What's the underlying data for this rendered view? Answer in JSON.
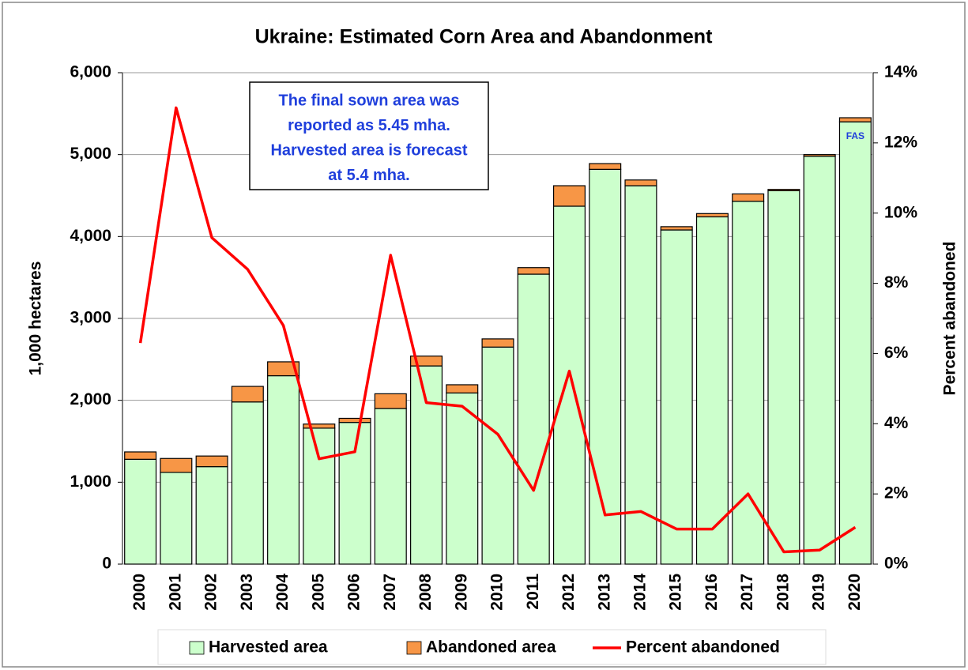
{
  "chart_data": {
    "type": "bar",
    "stacked": true,
    "title": "Ukraine: Estimated Corn Area and Abandonment",
    "ylabel": "1,000 hectares",
    "y2label": "Percent abandoned",
    "categories": [
      "2000",
      "2001",
      "2002",
      "2003",
      "2004",
      "2005",
      "2006",
      "2007",
      "2008",
      "2009",
      "2010",
      "2011",
      "2012",
      "2013",
      "2014",
      "2015",
      "2016",
      "2017",
      "2018",
      "2019",
      "2020"
    ],
    "series": [
      {
        "name": "Harvested area",
        "type": "bar",
        "color": "#ccffcc",
        "values": [
          1280,
          1120,
          1190,
          1980,
          2300,
          1660,
          1730,
          1900,
          2420,
          2090,
          2650,
          3540,
          4370,
          4820,
          4620,
          4080,
          4240,
          4430,
          4560,
          4980,
          5400
        ]
      },
      {
        "name": "Abandoned area",
        "type": "bar",
        "color": "#f79646",
        "values": [
          90,
          170,
          130,
          190,
          170,
          50,
          50,
          180,
          120,
          100,
          100,
          80,
          250,
          70,
          70,
          40,
          40,
          90,
          15,
          20,
          50
        ]
      },
      {
        "name": "Percent abandoned",
        "type": "line",
        "axis": "y2",
        "color": "#ff0000",
        "values": [
          6.3,
          13.0,
          9.3,
          8.4,
          6.8,
          3.0,
          3.2,
          8.8,
          4.6,
          4.5,
          3.7,
          2.1,
          5.5,
          1.4,
          1.5,
          1.0,
          1.0,
          2.0,
          0.35,
          0.4,
          1.05
        ]
      }
    ],
    "ylim": [
      0,
      6000
    ],
    "yticks": [
      0,
      {
        "value": 1000,
        "label": "1,000"
      },
      {
        "value": 2000,
        "label": "2,000"
      },
      {
        "value": 3000,
        "label": "3,000"
      },
      {
        "value": 4000,
        "label": "4,000"
      },
      {
        "value": 5000,
        "label": "5,000"
      },
      {
        "value": 6000,
        "label": "6,000"
      }
    ],
    "y2lim": [
      0,
      14
    ],
    "y2ticks": [
      {
        "value": 0,
        "label": "0%"
      },
      {
        "value": 2,
        "label": "2%"
      },
      {
        "value": 4,
        "label": "4%"
      },
      {
        "value": 6,
        "label": "6%"
      },
      {
        "value": 8,
        "label": "8%"
      },
      {
        "value": 10,
        "label": "10%"
      },
      {
        "value": 12,
        "label": "12%"
      },
      {
        "value": 14,
        "label": "14%"
      }
    ],
    "grid": true,
    "legend": "bottom",
    "annotation_lines": [
      "The final sown area was",
      "reported as 5.45 mha.",
      "Harvested area is forecast",
      "at 5.4 mha."
    ],
    "bar_annotation": "FAS"
  }
}
